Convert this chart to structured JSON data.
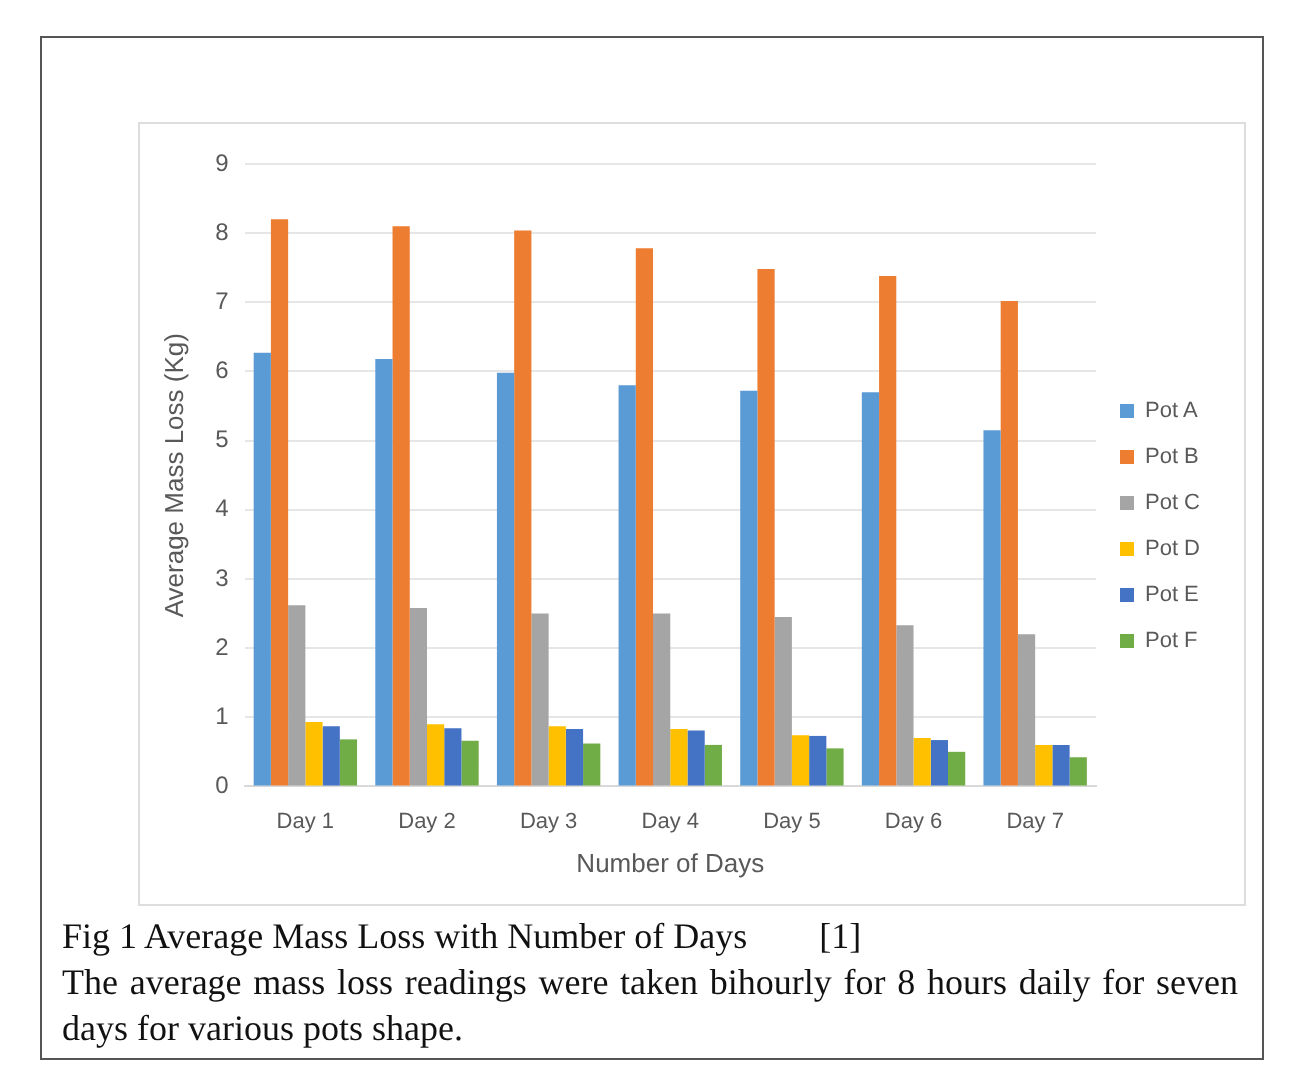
{
  "chart_data": {
    "type": "bar",
    "xlabel": "Number of Days",
    "ylabel": "Average Mass Loss (Kg)",
    "categories": [
      "Day 1",
      "Day 2",
      "Day 3",
      "Day 4",
      "Day 5",
      "Day 6",
      "Day 7"
    ],
    "series": [
      {
        "name": "Pot A",
        "color": "#5b9bd5",
        "values": [
          6.27,
          6.18,
          5.98,
          5.8,
          5.72,
          5.7,
          5.15
        ]
      },
      {
        "name": "Pot B",
        "color": "#ed7d31",
        "values": [
          8.2,
          8.1,
          8.04,
          7.78,
          7.48,
          7.38,
          7.02
        ]
      },
      {
        "name": "Pot C",
        "color": "#a5a5a5",
        "values": [
          2.62,
          2.58,
          2.5,
          2.5,
          2.45,
          2.33,
          2.2
        ]
      },
      {
        "name": "Pot D",
        "color": "#ffc000",
        "values": [
          0.93,
          0.9,
          0.87,
          0.83,
          0.74,
          0.7,
          0.6
        ]
      },
      {
        "name": "Pot E",
        "color": "#4472c4",
        "values": [
          0.87,
          0.84,
          0.83,
          0.81,
          0.73,
          0.67,
          0.6
        ]
      },
      {
        "name": "Pot F",
        "color": "#70ad47",
        "values": [
          0.68,
          0.66,
          0.62,
          0.6,
          0.55,
          0.5,
          0.42
        ]
      }
    ],
    "ylim": [
      0,
      9
    ],
    "yticks": [
      0,
      1,
      2,
      3,
      4,
      5,
      6,
      7,
      8,
      9
    ],
    "grid": "y",
    "legend": "right",
    "annotations": [
      "Fig 1 Average Mass Loss with Number of Days        [1]",
      "The average mass loss readings were taken bihourly for 8 hours daily for seven days for various pots shape."
    ]
  }
}
